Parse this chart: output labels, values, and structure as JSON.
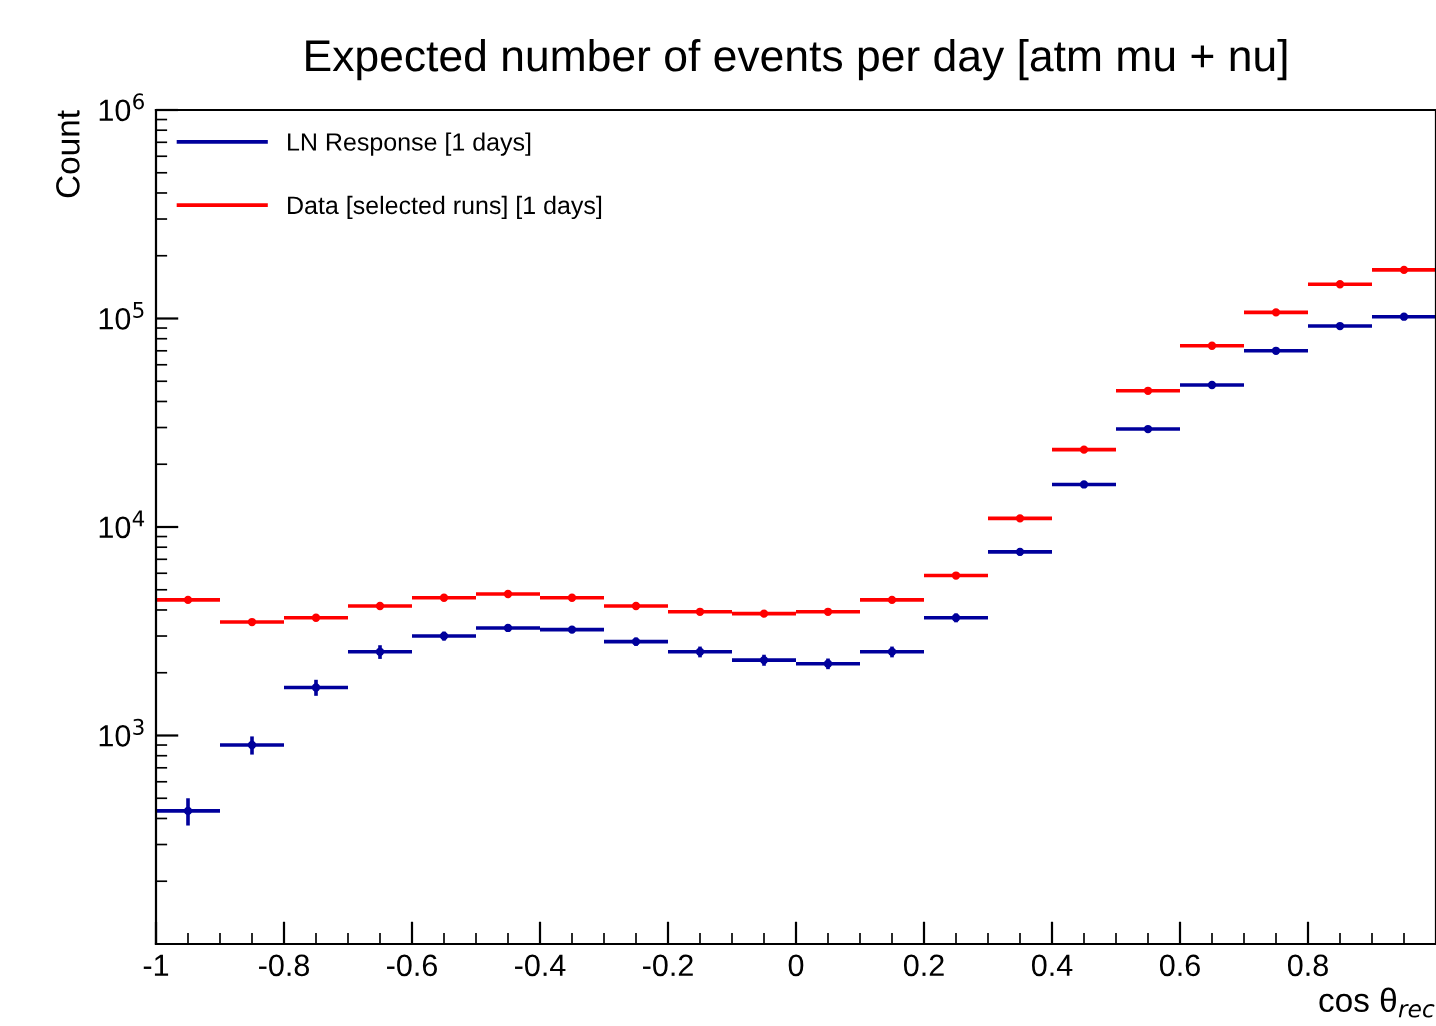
{
  "chart_data": {
    "type": "scatter",
    "title": "Expected number of events per day [atm mu + nu]",
    "xlabel": "cos θ$_{rec}$",
    "ylabel": "Count",
    "x": [
      -0.95,
      -0.85,
      -0.75,
      -0.65,
      -0.55,
      -0.45,
      -0.35,
      -0.25,
      -0.15,
      -0.05,
      0.05,
      0.15,
      0.25,
      0.35,
      0.45,
      0.55,
      0.65,
      0.75,
      0.85,
      0.95
    ],
    "series": [
      {
        "name": "LN Response [1 days]",
        "color": "#00009c",
        "values": [
          435,
          900,
          1700,
          2520,
          3000,
          3280,
          3220,
          2820,
          2520,
          2300,
          2210,
          2520,
          3670,
          7600,
          16000,
          29500,
          48000,
          70000,
          92000,
          102000
        ],
        "errors": [
          65,
          90,
          150,
          190,
          150,
          120,
          120,
          130,
          150,
          140,
          130,
          150,
          180,
          300,
          500,
          700,
          900,
          1000,
          1200,
          1500
        ],
        "xerrors": [
          0.05,
          0.05,
          0.05,
          0.05,
          0.05,
          0.05,
          0.05,
          0.05,
          0.05,
          0.05,
          0.05,
          0.05,
          0.05,
          0.05,
          0.05,
          0.05,
          0.05,
          0.05,
          0.05,
          0.05
        ]
      },
      {
        "name": "Data [selected runs] [1 days]",
        "color": "#ff0000",
        "values": [
          4470,
          3500,
          3670,
          4180,
          4580,
          4770,
          4580,
          4180,
          3920,
          3840,
          3920,
          4470,
          5850,
          11000,
          23500,
          45000,
          74000,
          107000,
          146000,
          171000
        ],
        "xerrors": [
          0.05,
          0.05,
          0.05,
          0.05,
          0.05,
          0.05,
          0.05,
          0.05,
          0.05,
          0.05,
          0.05,
          0.05,
          0.05,
          0.05,
          0.05,
          0.05,
          0.05,
          0.05,
          0.05,
          0.05
        ]
      }
    ],
    "log": "y",
    "xlim": [
      -1,
      1
    ],
    "ylim": [
      100,
      1000000
    ],
    "xticks": [
      -1,
      -0.8,
      -0.6,
      -0.4,
      -0.2,
      0,
      0.2,
      0.4,
      0.6,
      0.8
    ],
    "yticks": [
      {
        "value": 1000,
        "label": "10$^{3}$"
      },
      {
        "value": 10000,
        "label": "10$^{4}$"
      },
      {
        "value": 100000,
        "label": "10$^{5}$"
      },
      {
        "value": 1000000,
        "label": "10$^{6}$"
      }
    ],
    "legend": "top left",
    "marker": "circle"
  }
}
